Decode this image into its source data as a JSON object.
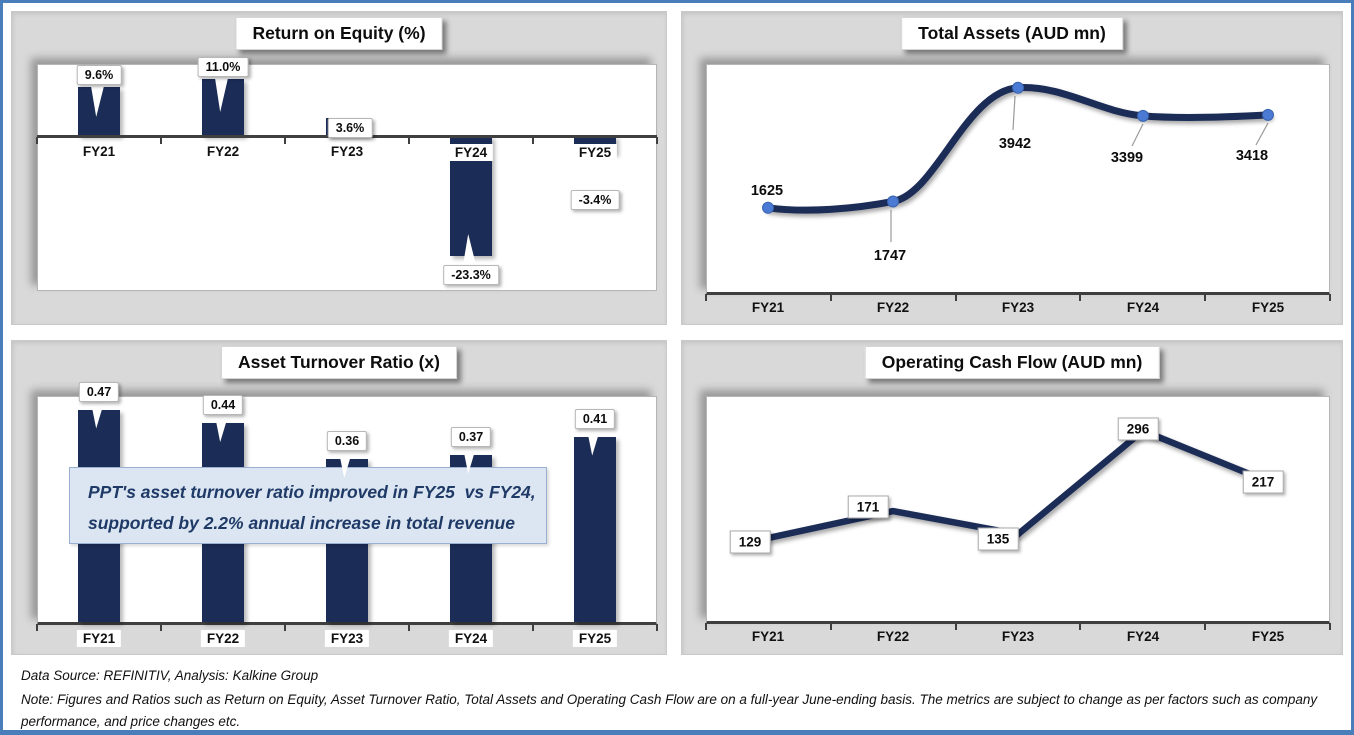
{
  "page": {
    "footer": {
      "source": "Data Source: REFINITIV, Analysis: Kalkine Group",
      "note": "Note: Figures and Ratios such as Return on Equity, Asset Turnover Ratio, Total Assets and Operating Cash Flow are on a full-year June-ending basis. The metrics are subject to change as per factors such as company performance, and price changes etc."
    }
  },
  "colors": {
    "frame_border": "#4a7ebb",
    "panel_bg": "#d9d9d9",
    "series_navy": "#1b2c57",
    "marker_blue": "#4a7ad4",
    "marker_edge": "#3a62ad",
    "leader_gray": "#9a9a9a",
    "annotation_bg": "#dce6f2",
    "annotation_border": "#9ab0cf",
    "annotation_text": "#1f3a66"
  },
  "chart_data": [
    {
      "id": "roe",
      "type": "bar",
      "title": "Return on Equity (%)",
      "categories": [
        "FY21",
        "FY22",
        "FY23",
        "FY24",
        "FY25"
      ],
      "values": [
        9.6,
        11.0,
        3.6,
        -23.3,
        -3.4
      ],
      "labels": [
        "9.6%",
        "11.0%",
        "3.6%",
        "-23.3%",
        "-3.4%"
      ],
      "xlabel": "",
      "ylabel": "",
      "ylim": [
        -30,
        14
      ],
      "grid": false,
      "legend": false
    },
    {
      "id": "total_assets",
      "type": "line",
      "title": "Total Assets (AUD mn)",
      "categories": [
        "FY21",
        "FY22",
        "FY23",
        "FY24",
        "FY25"
      ],
      "values": [
        1625,
        1747,
        3942,
        3399,
        3418
      ],
      "labels": [
        "1625",
        "1747",
        "3942",
        "3399",
        "3418"
      ],
      "xlabel": "",
      "ylabel": "",
      "ylim": [
        0,
        4400
      ],
      "smooth": true,
      "markers": true,
      "grid": false,
      "legend": false
    },
    {
      "id": "atr",
      "type": "bar",
      "title": "Asset Turnover Ratio (x)",
      "categories": [
        "FY21",
        "FY22",
        "FY23",
        "FY24",
        "FY25"
      ],
      "values": [
        0.47,
        0.44,
        0.36,
        0.37,
        0.41
      ],
      "labels": [
        "0.47",
        "0.44",
        "0.36",
        "0.37",
        "0.41"
      ],
      "xlabel": "",
      "ylabel": "",
      "ylim": [
        0,
        0.5
      ],
      "grid": false,
      "legend": false,
      "annotation_lines": [
        "PPT's asset turnover ratio improved in FY25  vs FY24,",
        "supported by 2.2% annual increase in total revenue"
      ]
    },
    {
      "id": "ocf",
      "type": "line",
      "title": "Operating Cash Flow (AUD mn)",
      "categories": [
        "FY21",
        "FY22",
        "FY23",
        "FY24",
        "FY25"
      ],
      "values": [
        129,
        171,
        135,
        296,
        217
      ],
      "labels": [
        "129",
        "171",
        "135",
        "296",
        "217"
      ],
      "xlabel": "",
      "ylabel": "",
      "ylim": [
        0,
        350
      ],
      "smooth": false,
      "markers": false,
      "grid": false,
      "legend": false
    }
  ]
}
